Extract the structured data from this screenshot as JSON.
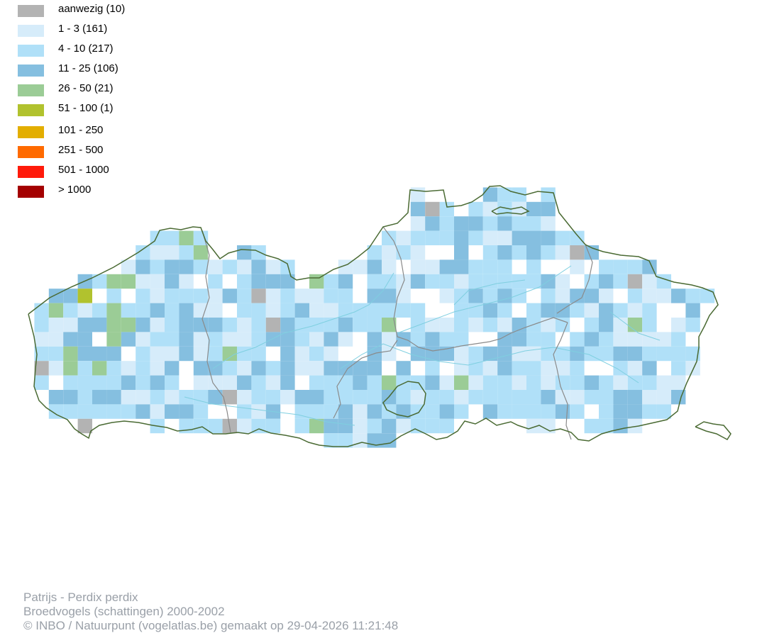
{
  "legend": [
    {
      "label": "aanwezig (10)",
      "color": "#b3b3b3"
    },
    {
      "label": "1 - 3 (161)",
      "color": "#d6ecfa"
    },
    {
      "label": "4 - 10 (217)",
      "color": "#b0e0f8"
    },
    {
      "label": "11 - 25 (106)",
      "color": "#85bfe0"
    },
    {
      "label": "26 - 50 (21)",
      "color": "#9bcc96"
    },
    {
      "label": "51 - 100 (1)",
      "color": "#b1c22e"
    },
    {
      "label": "101 - 250",
      "color": "#e3ae00"
    },
    {
      "label": "251 - 500",
      "color": "#ff6a00"
    },
    {
      "label": "501 - 1000",
      "color": "#ff1a0a"
    },
    {
      "label": "> 1000",
      "color": "#a40000"
    }
  ],
  "footer": {
    "species": "Patrijs - Perdix perdix",
    "dataset": "Broedvogels (schattingen) 2000-2002",
    "credit": "© INBO / Natuurpunt (vogelatlas.be) gemaakt op 29-04-2026 11:21:48"
  },
  "map": {
    "border_color": "#4a6a33",
    "province_color": "#8a8a8a",
    "river_color": "#7fcfe0"
  }
}
